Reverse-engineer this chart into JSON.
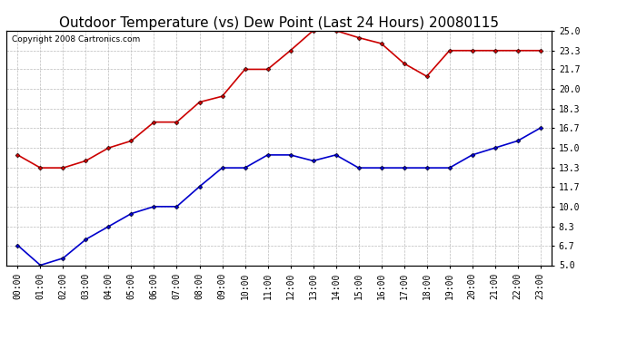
{
  "title": "Outdoor Temperature (vs) Dew Point (Last 24 Hours) 20080115",
  "copyright": "Copyright 2008 Cartronics.com",
  "x_labels": [
    "00:00",
    "01:00",
    "02:00",
    "03:00",
    "04:00",
    "05:00",
    "06:00",
    "07:00",
    "08:00",
    "09:00",
    "10:00",
    "11:00",
    "12:00",
    "13:00",
    "14:00",
    "15:00",
    "16:00",
    "17:00",
    "18:00",
    "19:00",
    "20:00",
    "21:00",
    "22:00",
    "23:00"
  ],
  "temp_data": [
    14.4,
    13.3,
    13.3,
    13.9,
    15.0,
    15.6,
    17.2,
    17.2,
    18.9,
    19.4,
    21.7,
    21.7,
    23.3,
    25.0,
    25.0,
    24.4,
    23.9,
    22.2,
    21.1,
    23.3,
    23.3,
    23.3,
    23.3,
    23.3
  ],
  "dew_data": [
    6.7,
    5.0,
    5.6,
    7.2,
    8.3,
    9.4,
    10.0,
    10.0,
    11.7,
    13.3,
    13.3,
    14.4,
    14.4,
    13.9,
    14.4,
    13.3,
    13.3,
    13.3,
    13.3,
    13.3,
    14.4,
    15.0,
    15.6,
    16.7
  ],
  "temp_color": "#cc0000",
  "dew_color": "#0000cc",
  "bg_color": "#ffffff",
  "grid_color": "#bbbbbb",
  "ylim_min": 5.0,
  "ylim_max": 25.0,
  "yticks": [
    5.0,
    6.7,
    8.3,
    10.0,
    11.7,
    13.3,
    15.0,
    16.7,
    18.3,
    20.0,
    21.7,
    23.3,
    25.0
  ],
  "ytick_labels": [
    "5.0",
    "6.7",
    "8.3",
    "10.0",
    "11.7",
    "13.3",
    "15.0",
    "16.7",
    "18.3",
    "20.0",
    "21.7",
    "23.3",
    "25.0"
  ],
  "title_fontsize": 11,
  "copyright_fontsize": 6.5,
  "tick_fontsize": 7,
  "marker": "D",
  "marker_size": 2.5,
  "line_width": 1.2
}
